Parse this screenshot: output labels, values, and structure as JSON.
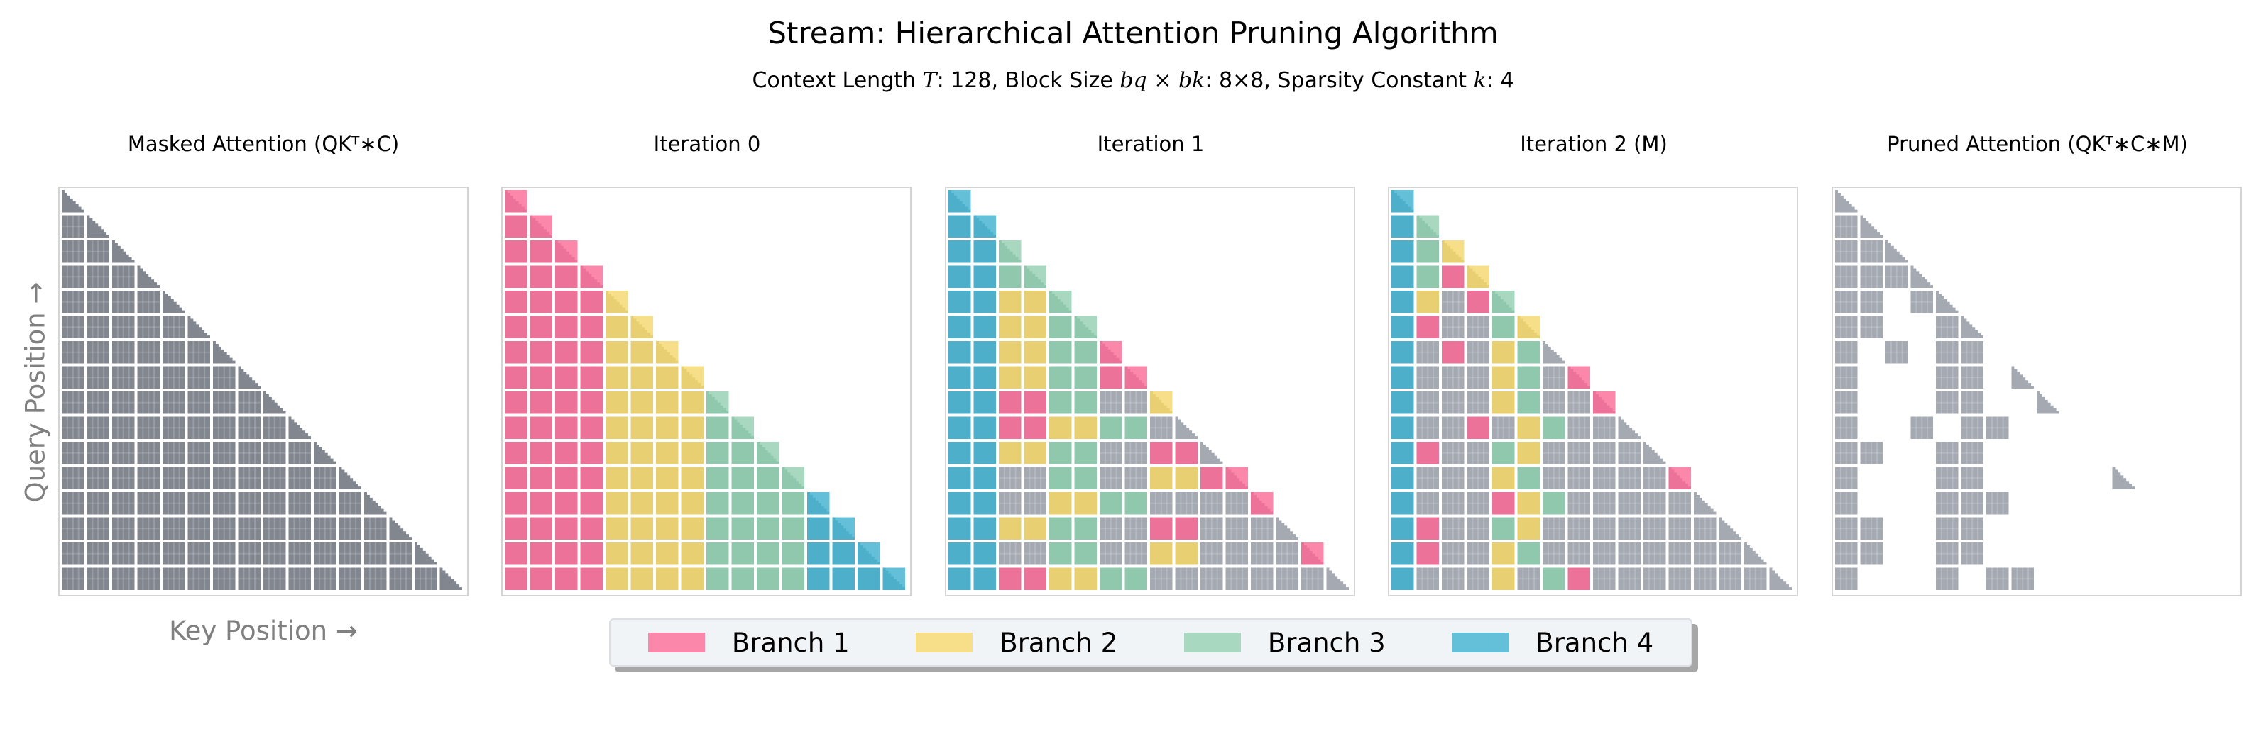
{
  "title": "Stream: Hierarchical Attention Pruning Algorithm",
  "subtitle": {
    "context_label": "Context Length ",
    "context_symbol": "T",
    "context_value": ": 128, ",
    "block_label": "Block Size ",
    "block_symbol": "bq × bk",
    "block_value": ": 8×8, ",
    "sparsity_label": "Sparsity Constant ",
    "sparsity_symbol": "k",
    "sparsity_value": ": 4"
  },
  "axes": {
    "ylabel": "Query Position →",
    "xlabel": "Key Position →"
  },
  "legend": [
    {
      "label": "Branch 1",
      "color": "#fb88ab"
    },
    {
      "label": "Branch 2",
      "color": "#f7df8a"
    },
    {
      "label": "Branch 3",
      "color": "#a8d8c0"
    },
    {
      "label": "Branch 4",
      "color": "#64c0d8"
    }
  ],
  "block_colors": {
    "1": "#ec7299",
    "2": "#e8cf72",
    "3": "#90c8ad",
    "4": "#4dafca",
    "gray": "#a4a9b2",
    "masked": "#81868f"
  },
  "panels": [
    {
      "title": "Masked Attention (QKᵀ∗C)"
    },
    {
      "title": "Iteration 0"
    },
    {
      "title": "Iteration 1"
    },
    {
      "title": "Iteration 2 (M)"
    },
    {
      "title": "Pruned Attention (QKᵀ∗C∗M)"
    }
  ],
  "chart_data": {
    "type": "heatmap",
    "grid_blocks": 16,
    "encoding": "0 = unselected block, 1-4 = branch id; row r lists key blocks 0..r",
    "iteration_0": [
      "1",
      "11",
      "111",
      "1111",
      "11112",
      "111122",
      "1111222",
      "11112222",
      "111122223",
      "1111222233",
      "11112222333",
      "111122223333",
      "1111222233334",
      "11112222333344",
      "111122223333444",
      "1111222233334444"
    ],
    "iteration_1": [
      "4",
      "44",
      "443",
      "4433",
      "44223",
      "442233",
      "4422331",
      "44223311",
      "441133002",
      "4411223300",
      "44223300110",
      "440033002211",
      "4400223300001",
      "44223300110000",
      "440033002200001",
      "4411223300000000"
    ],
    "iteration_2": [
      "4",
      "43",
      "432",
      "4312",
      "42013",
      "410032",
      "4010230",
      "40002301",
      "400023001",
      "4001023000",
      "41003200000",
      "400023000001",
      "4000123000000",
      "41003200000000",
      "410023000000000",
      "4000203100000000"
    ]
  }
}
